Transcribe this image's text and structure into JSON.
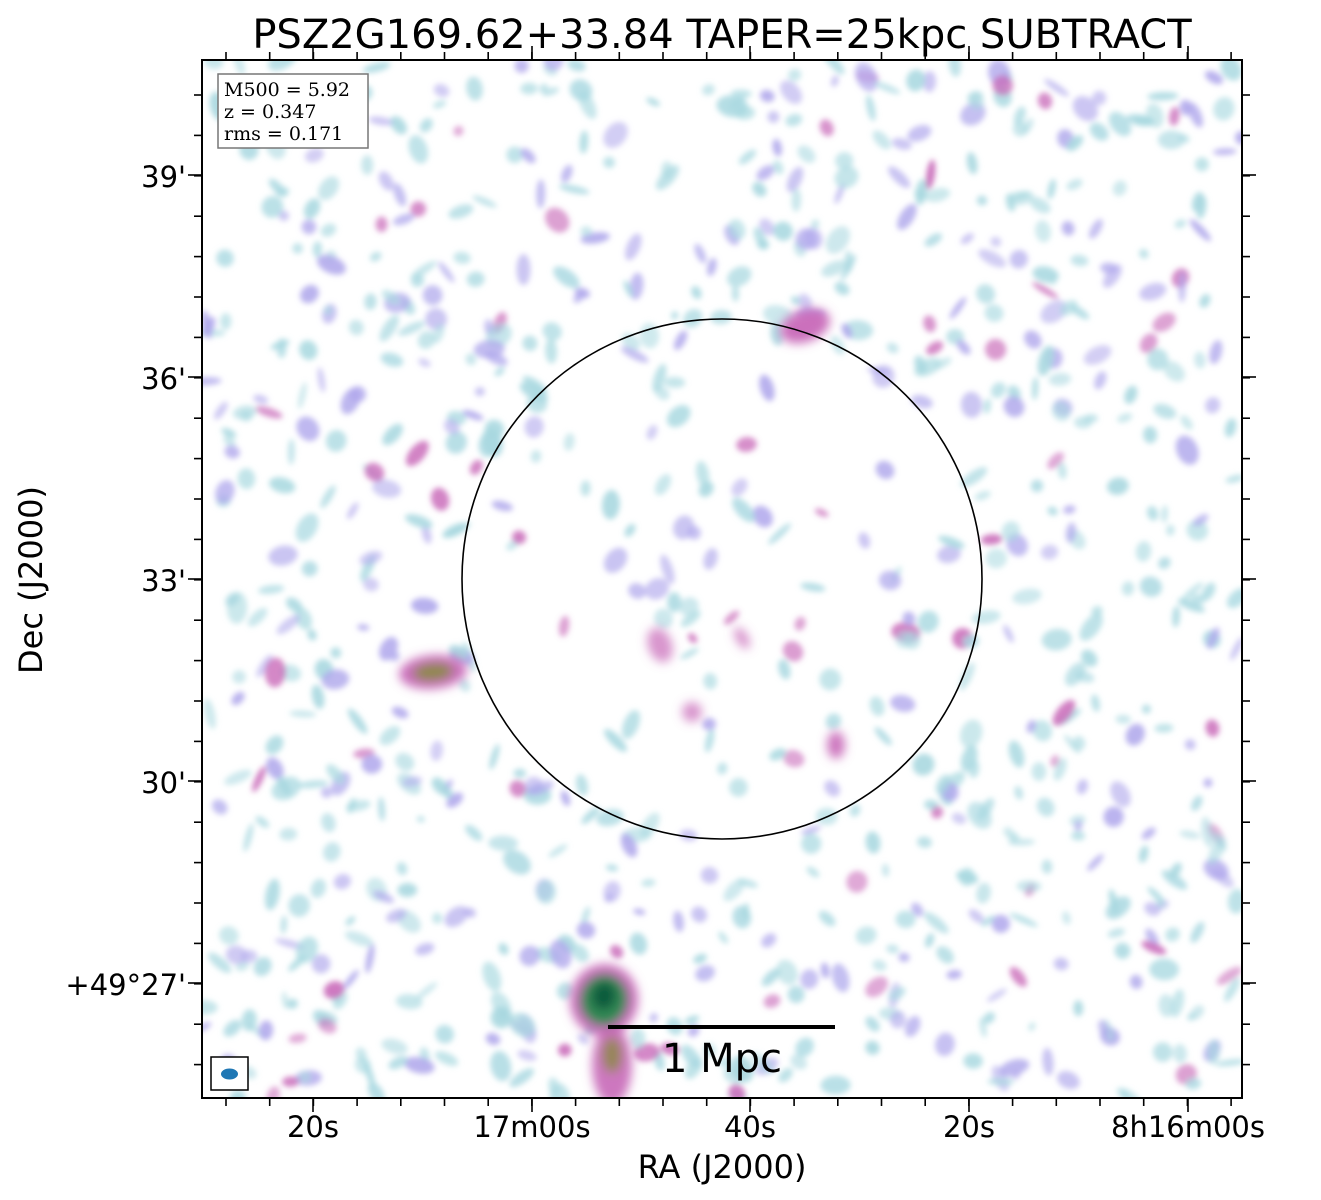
{
  "title": "PSZ2G169.62+33.84 TAPER=25kpc SUBTRACT",
  "info_box": {
    "m500": "M500 = 5.92",
    "z": "z = 0.347",
    "rms": "rms = 0.171"
  },
  "axes": {
    "xlabel": "RA (J2000)",
    "ylabel": "Dec (J2000)",
    "x_ticks": [
      "20s",
      "17m00s",
      "40s",
      "20s",
      "8h16m00s"
    ],
    "y_ticks": [
      "39'",
      "36'",
      "33'",
      "30'",
      "+49°27'"
    ]
  },
  "scale_bar": {
    "label": "1 Mpc"
  },
  "colors": {
    "faint": "#a8d8e0",
    "mid": "#b0a8ec",
    "bright": "#c868b8",
    "core": "#2a8a50",
    "core_dark": "#0f5a3c",
    "beam": "#1f77b4"
  }
}
